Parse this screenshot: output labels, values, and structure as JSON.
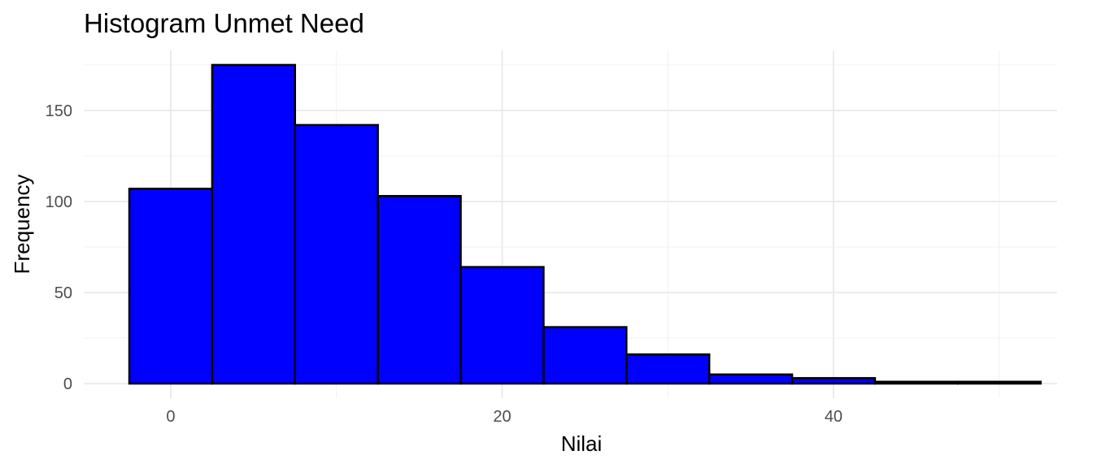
{
  "chart_data": {
    "type": "bar",
    "title": "Histogram Unmet Need",
    "xlabel": "Nilai",
    "ylabel": "Frequency",
    "bins": [
      {
        "start": -2.5,
        "end": 2.5,
        "count": 107
      },
      {
        "start": 2.5,
        "end": 7.5,
        "count": 175
      },
      {
        "start": 7.5,
        "end": 12.5,
        "count": 142
      },
      {
        "start": 12.5,
        "end": 17.5,
        "count": 103
      },
      {
        "start": 17.5,
        "end": 22.5,
        "count": 64
      },
      {
        "start": 22.5,
        "end": 27.5,
        "count": 31
      },
      {
        "start": 27.5,
        "end": 32.5,
        "count": 16
      },
      {
        "start": 32.5,
        "end": 37.5,
        "count": 5
      },
      {
        "start": 37.5,
        "end": 42.5,
        "count": 3
      },
      {
        "start": 42.5,
        "end": 47.5,
        "count": 1
      },
      {
        "start": 47.5,
        "end": 52.5,
        "count": 1
      }
    ],
    "xlim": [
      -5.25,
      53.5
    ],
    "ylim": [
      -8,
      183
    ],
    "x_ticks": [
      0,
      20,
      40
    ],
    "x_minor_ticks": [
      10,
      30,
      50
    ],
    "y_ticks": [
      0,
      50,
      100,
      150
    ],
    "y_minor_ticks": [
      25,
      75,
      125,
      175
    ],
    "grid": true,
    "legend": "none",
    "colors": {
      "bar_fill": "#0000ff",
      "bar_outline": "#000000"
    }
  }
}
